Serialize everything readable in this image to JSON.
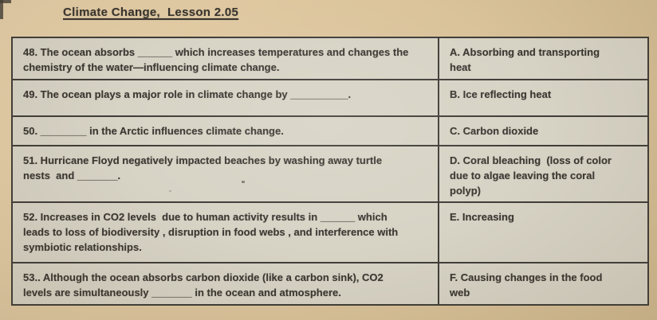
{
  "page": {
    "title": "Climate Change,  Lesson 2.05"
  },
  "worksheet": {
    "rows": [
      {
        "question": "48. The ocean absorbs ______ which increases temperatures and changes the\nchemistry of the water—influencing climate change.",
        "answer": "A. Absorbing and transporting\nheat"
      },
      {
        "question": "49. The ocean plays a major role in climate change by __________.",
        "answer": "B. Ice reflecting heat"
      },
      {
        "question": "50. ________ in the Arctic influences climate change.",
        "answer": "C. Carbon dioxide"
      },
      {
        "question": "51. Hurricane Floyd negatively impacted beaches by washing away turtle\nnests  and _______.",
        "answer": "D. Coral bleaching  (loss of color\ndue to algae leaving the coral\npolyp)"
      },
      {
        "question": "52. Increases in CO2 levels  due to human activity results in ______ which\nleads to loss of biodiversity , disruption in food webs , and interference with\nsymbiotic relationships.",
        "answer": "E. Increasing"
      },
      {
        "question": "53.. Although the ocean absorbs carbon dioxide (like a carbon sink), CO2\nlevels are simultaneously _______ in the ocean and atmosphere.",
        "answer": "F. Causing changes in the food\nweb"
      }
    ]
  },
  "colors": {
    "photo_background": "#ddc69e",
    "cell_background": "#d7d3c5",
    "border": "#403d39",
    "text": "#3a3631"
  }
}
